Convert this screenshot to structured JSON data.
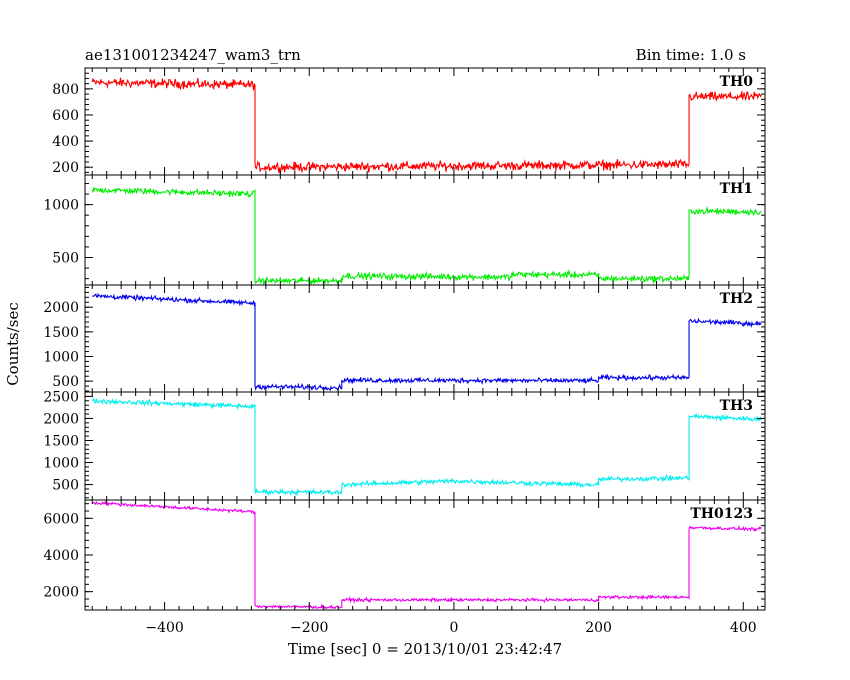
{
  "chart_data": {
    "type": "line",
    "title": "ae131001234247_wam3_trn",
    "subtitle": "Bin time: 1.0 s",
    "xlabel": "Time [sec] 0 = 2013/10/01 23:42:47",
    "ylabel": "Counts/sec",
    "xlim": [
      -510,
      430
    ],
    "x_ticks": [
      -400,
      -200,
      0,
      200,
      400
    ],
    "grid": false,
    "panels": [
      {
        "label": "TH0",
        "color": "#ff0000",
        "ylim": [
          140,
          960
        ],
        "y_ticks": [
          200,
          400,
          600,
          800
        ],
        "segments": [
          {
            "x": [
              -500,
              -275
            ],
            "y": [
              850,
              830
            ]
          },
          {
            "x": [
              -275,
              325
            ],
            "y": [
              200,
              220
            ]
          },
          {
            "x": [
              325,
              425
            ],
            "y": [
              740,
              740
            ]
          }
        ],
        "noise": 30
      },
      {
        "label": "TH1",
        "color": "#00ee00",
        "ylim": [
          240,
          1280
        ],
        "y_ticks": [
          500,
          1000
        ],
        "segments": [
          {
            "x": [
              -500,
              -275
            ],
            "y": [
              1140,
              1100
            ]
          },
          {
            "x": [
              -275,
              -155
            ],
            "y": [
              280,
              280
            ]
          },
          {
            "x": [
              -155,
              80
            ],
            "y": [
              325,
              315
            ]
          },
          {
            "x": [
              80,
              200
            ],
            "y": [
              340,
              335
            ]
          },
          {
            "x": [
              200,
              325
            ],
            "y": [
              300,
              300
            ]
          },
          {
            "x": [
              325,
              425
            ],
            "y": [
              940,
              930
            ]
          }
        ],
        "noise": 25
      },
      {
        "label": "TH2",
        "color": "#0000ee",
        "ylim": [
          280,
          2450
        ],
        "y_ticks": [
          500,
          1000,
          1500,
          2000
        ],
        "segments": [
          {
            "x": [
              -500,
              -275
            ],
            "y": [
              2230,
              2080
            ]
          },
          {
            "x": [
              -275,
              -155
            ],
            "y": [
              390,
              370
            ]
          },
          {
            "x": [
              -155,
              200
            ],
            "y": [
              520,
              510
            ]
          },
          {
            "x": [
              200,
              325
            ],
            "y": [
              570,
              570
            ]
          },
          {
            "x": [
              325,
              425
            ],
            "y": [
              1720,
              1660
            ]
          }
        ],
        "noise": 40
      },
      {
        "label": "TH3",
        "color": "#00eeee",
        "ylim": [
          150,
          2600
        ],
        "y_ticks": [
          500,
          1000,
          1500,
          2000,
          2500
        ],
        "segments": [
          {
            "x": [
              -500,
              -275
            ],
            "y": [
              2400,
              2270
            ]
          },
          {
            "x": [
              -275,
              -155
            ],
            "y": [
              340,
              320
            ]
          },
          {
            "x": [
              -155,
              0
            ],
            "y": [
              500,
              580
            ]
          },
          {
            "x": [
              0,
              200
            ],
            "y": [
              580,
              490
            ]
          },
          {
            "x": [
              200,
              325
            ],
            "y": [
              620,
              650
            ]
          },
          {
            "x": [
              325,
              425
            ],
            "y": [
              2050,
              1980
            ]
          }
        ],
        "noise": 45
      },
      {
        "label": "TH0123",
        "color": "#ee00ee",
        "ylim": [
          1000,
          7000
        ],
        "y_ticks": [
          2000,
          4000,
          6000
        ],
        "segments": [
          {
            "x": [
              -500,
              -275
            ],
            "y": [
              6850,
              6350
            ]
          },
          {
            "x": [
              -275,
              -155
            ],
            "y": [
              1200,
              1150
            ]
          },
          {
            "x": [
              -155,
              200
            ],
            "y": [
              1550,
              1550
            ]
          },
          {
            "x": [
              200,
              325
            ],
            "y": [
              1700,
              1700
            ]
          },
          {
            "x": [
              325,
              425
            ],
            "y": [
              5500,
              5400
            ]
          }
        ],
        "noise": 70
      }
    ]
  }
}
